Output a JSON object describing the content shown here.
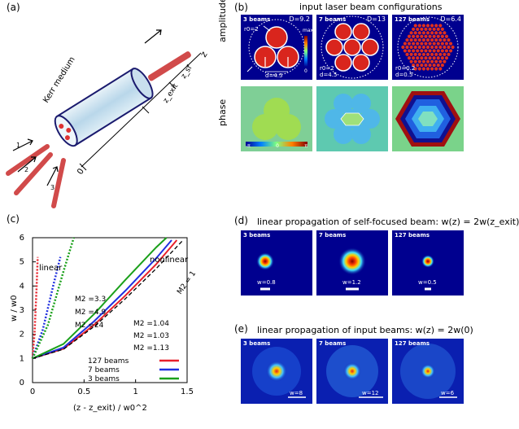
{
  "panels": {
    "a": "(a)",
    "b": "(b)",
    "c": "(c)",
    "d": "(d)",
    "e": "(e)"
  },
  "a": {
    "medium": "Kerr medium",
    "z": "z",
    "zsf": "z_sf",
    "zexit": "z_exit",
    "zero": "0",
    "beam1": "1",
    "beam2": "2",
    "beam3": "3"
  },
  "b": {
    "title": "input laser beam configurations",
    "row_amp": "amplitude",
    "row_phase": "phase",
    "cbar_max": "max",
    "cbar_min": "0",
    "phase_ticks": [
      "-π",
      "0",
      "π"
    ],
    "tiles": [
      {
        "label": "3 beams",
        "D": "D=9.2",
        "r0": "r0=2",
        "d": "d=4.5"
      },
      {
        "label": "7 beams",
        "D": "D=13",
        "r0": "r0=2",
        "d": "d=4.5"
      },
      {
        "label": "127 beams",
        "D": "D=6.4",
        "r0": "r0=0.2",
        "d": "d=0.5"
      }
    ]
  },
  "c": {
    "text_linear": "linear",
    "text_nonlinear": "nonlinear",
    "labels_linear": [
      "M2 =3.3",
      "M2 =4.9",
      "M2 =24"
    ],
    "labels_nonlinear": [
      "M2 =1.04",
      "M2 =1.03",
      "M2 =1.13"
    ],
    "m1": "M2 = 1",
    "legend": [
      "127 beams",
      "7 beams",
      "3 beams"
    ]
  },
  "chart_data": {
    "type": "line",
    "xlabel": "(z - z_exit) / w0^2",
    "ylabel": "w / w0",
    "xlim": [
      0,
      1.5
    ],
    "ylim": [
      0,
      6
    ],
    "xticks": [
      "0",
      "0.5",
      "1",
      "1.5"
    ],
    "yticks": [
      "0",
      "1",
      "2",
      "3",
      "4",
      "5",
      "6"
    ],
    "series": [
      {
        "name": "127 beams",
        "color": "#e8202a",
        "style": "solid",
        "x": [
          0,
          0.3,
          0.6,
          0.9,
          1.2,
          1.4
        ],
        "y": [
          1.0,
          1.4,
          2.4,
          3.6,
          4.9,
          5.9
        ]
      },
      {
        "name": "7 beams",
        "color": "#2030e0",
        "style": "solid",
        "x": [
          0,
          0.3,
          0.6,
          0.9,
          1.2,
          1.35
        ],
        "y": [
          1.0,
          1.45,
          2.55,
          3.8,
          5.15,
          5.9
        ]
      },
      {
        "name": "3 beams",
        "color": "#1aa01a",
        "style": "solid",
        "x": [
          0,
          0.3,
          0.6,
          0.9,
          1.2,
          1.3
        ],
        "y": [
          1.0,
          1.6,
          2.85,
          4.25,
          5.6,
          6.0
        ]
      },
      {
        "name": "M2 = 1",
        "color": "#000",
        "style": "dashed",
        "x": [
          0,
          0.3,
          0.6,
          0.9,
          1.2,
          1.45
        ],
        "y": [
          1.0,
          1.38,
          2.33,
          3.47,
          4.72,
          5.85
        ]
      },
      {
        "name": "127 beams linear",
        "color": "#e8202a",
        "style": "dotted",
        "x": [
          0,
          0.02,
          0.04,
          0.05
        ],
        "y": [
          1.0,
          2.1,
          4.0,
          5.2
        ]
      },
      {
        "name": "7 beams linear",
        "color": "#2030e0",
        "style": "dotted",
        "x": [
          0,
          0.1,
          0.2,
          0.27
        ],
        "y": [
          1.0,
          2.2,
          4.0,
          5.2
        ]
      },
      {
        "name": "3 beams linear",
        "color": "#1aa01a",
        "style": "dotted",
        "x": [
          0,
          0.15,
          0.3,
          0.4
        ],
        "y": [
          1.0,
          2.4,
          4.6,
          6.0
        ]
      }
    ]
  },
  "d": {
    "title": "linear propagation of self-focused beam:  w(z) = 2w(z_exit)",
    "tiles": [
      {
        "label": "3 beams",
        "w": "w=0.8"
      },
      {
        "label": "7 beams",
        "w": "w=1.2"
      },
      {
        "label": "127 beams",
        "w": "w=0.5"
      }
    ]
  },
  "e": {
    "title": "linear propagation of input beams:  w(z) = 2w(0)",
    "tiles": [
      {
        "label": "3 beams",
        "w": "w=8"
      },
      {
        "label": "7 beams",
        "w": "w=12"
      },
      {
        "label": "127 beams",
        "w": "w=6"
      }
    ]
  }
}
